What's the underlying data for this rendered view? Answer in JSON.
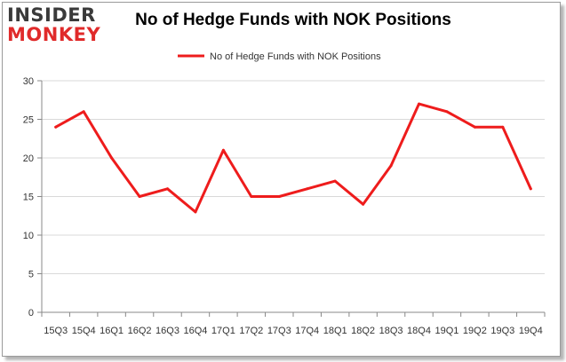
{
  "logo": {
    "line1": "INSIDER",
    "line2": "MONKEY"
  },
  "colors": {
    "series": "#ee1c1c",
    "axis": "#888888",
    "grid": "#d9d9d9",
    "frame_border": "#9a9a9a"
  },
  "chart_data": {
    "type": "line",
    "title": "No of Hedge Funds with NOK Positions",
    "categories": [
      "15Q3",
      "15Q4",
      "16Q1",
      "16Q2",
      "16Q3",
      "16Q4",
      "17Q1",
      "17Q2",
      "17Q3",
      "17Q4",
      "18Q1",
      "18Q2",
      "18Q3",
      "18Q4",
      "19Q1",
      "19Q2",
      "19Q3",
      "19Q4"
    ],
    "series": [
      {
        "name": "No of Hedge Funds with NOK Positions",
        "values": [
          24,
          26,
          20,
          15,
          16,
          13,
          21,
          15,
          15,
          16,
          17,
          14,
          19,
          27,
          26,
          24,
          24,
          16
        ]
      }
    ],
    "ylim": [
      0,
      30
    ],
    "yticks": [
      0,
      5,
      10,
      15,
      20,
      25,
      30
    ],
    "grid": true,
    "legend": "top-center"
  }
}
